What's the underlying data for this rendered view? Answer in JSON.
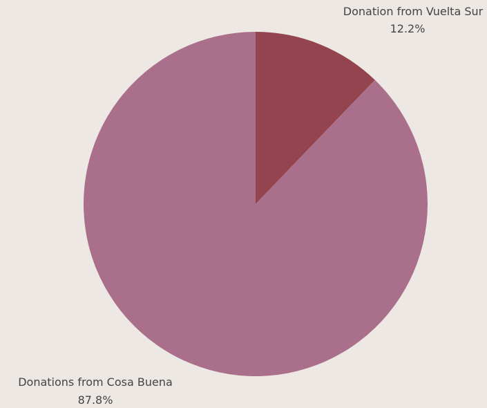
{
  "chart_data": {
    "type": "pie",
    "title": "",
    "slices": [
      {
        "label": "Donation from Vuelta Sur",
        "percent_label": "12.2%",
        "value": 12.2,
        "color": "#93444e"
      },
      {
        "label": "Donations from Cosa Buena",
        "percent_label": "87.8%",
        "value": 87.8,
        "color": "#aa708b"
      }
    ],
    "start_angle": "top (12 o'clock)",
    "direction": "clockwise",
    "background_color": "#ede8e3",
    "legend": "none (labels placed outside slices)"
  }
}
